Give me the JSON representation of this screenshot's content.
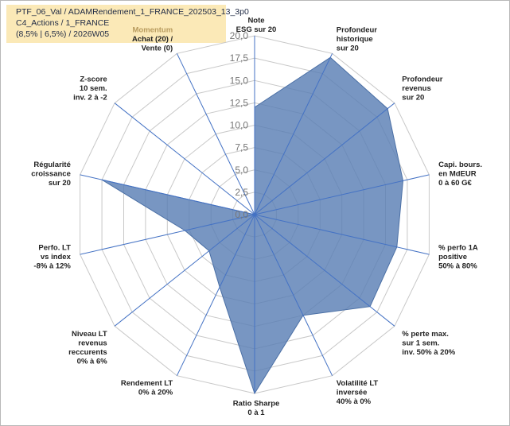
{
  "header": {
    "line1": "PTF_06_Val / ADAMRendement_1_FRANCE_202503_13_3p0",
    "line2": "C4_Actions / 1_FRANCE",
    "line3": "(8,5% | 6,5%) / 2026W05"
  },
  "chart_data": {
    "type": "radar",
    "title": "",
    "rmin": 0,
    "rmax": 20,
    "tick_labels": [
      "0,0",
      "2,5",
      "5,0",
      "7,5",
      "10,0",
      "12,5",
      "15,0",
      "17,5",
      "20,0"
    ],
    "axes": [
      {
        "label": [
          "Note",
          "ESG sur 20"
        ]
      },
      {
        "label": [
          "Profondeur",
          "historique",
          "sur 20"
        ]
      },
      {
        "label": [
          "Profondeur",
          "revenus",
          "sur 20"
        ]
      },
      {
        "label": [
          "Capi. bours.",
          "en MdEUR",
          "0 à 60 G€"
        ]
      },
      {
        "label": [
          "% perfo 1A",
          "positive",
          "50% à 80%"
        ]
      },
      {
        "label": [
          "% perte max.",
          "sur 1 sem.",
          "inv. 50% à 20%"
        ]
      },
      {
        "label": [
          "Volatilité LT",
          "inversée",
          "40% à 0%"
        ]
      },
      {
        "label": [
          "Ratio Sharpe",
          "0 à 1"
        ]
      },
      {
        "label": [
          "Rendement LT",
          "0% à 20%"
        ]
      },
      {
        "label": [
          "Niveau LT",
          "revenus",
          "reccurents",
          "0% à 6%"
        ]
      },
      {
        "label": [
          "Perfo. LT",
          "vs index",
          "-8% à 12%"
        ]
      },
      {
        "label": [
          "Régularité",
          "croissance",
          "sur 20"
        ]
      },
      {
        "label": [
          "Z-score",
          "10 sem.",
          "inv. 2 à -2"
        ]
      },
      {
        "label": [
          "Momentum",
          "Achat (20) /",
          "Vente (0)"
        ],
        "first_line_highlight": true
      }
    ],
    "series": [
      {
        "name": "PTF_06_Val",
        "values": [
          12.0,
          19.5,
          19.0,
          17.0,
          16.3,
          16.5,
          12.5,
          20.0,
          9.0,
          6.5,
          8.0,
          17.5,
          0.0,
          0.0
        ],
        "fill": "#5a7fb5",
        "fill_opacity": 0.82,
        "stroke": "#4a6fa5"
      }
    ],
    "colors": {
      "grid": "#c8c8c8",
      "spoke": "#4472c4",
      "highlight_label": "#b89b5e"
    }
  }
}
